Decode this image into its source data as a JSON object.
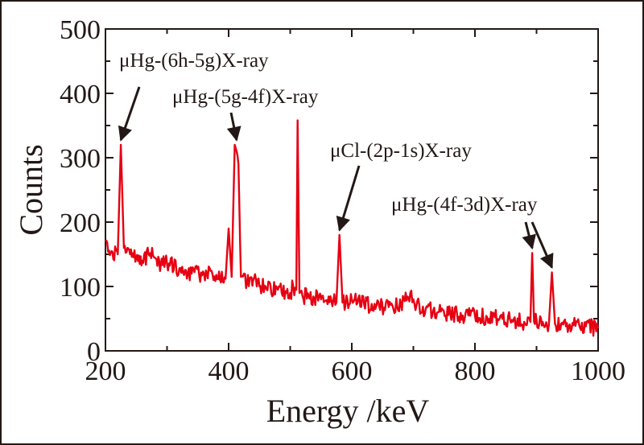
{
  "chart_data": {
    "type": "line",
    "title": "",
    "xlabel": "Energy /keV",
    "ylabel": "Counts",
    "xlim": [
      200,
      1000
    ],
    "ylim": [
      0,
      500
    ],
    "xticks": [
      "200",
      "400",
      "600",
      "800",
      "1000"
    ],
    "yticks": [
      "0",
      "100",
      "200",
      "300",
      "400",
      "500"
    ],
    "grid": false,
    "legend": "none",
    "series": [
      {
        "color": "#e60012",
        "x": [
          200,
          210,
          220,
          225,
          230,
          240,
          250,
          260,
          270,
          280,
          290,
          300,
          320,
          340,
          360,
          380,
          395,
          400,
          405,
          410,
          413,
          416,
          420,
          425,
          430,
          440,
          450,
          460,
          480,
          500,
          505,
          510,
          512,
          515,
          520,
          530,
          550,
          570,
          575,
          580,
          585,
          590,
          600,
          620,
          640,
          660,
          680,
          695,
          700,
          705,
          720,
          740,
          760,
          780,
          800,
          820,
          840,
          860,
          880,
          890,
          893,
          896,
          900,
          910,
          920,
          925,
          930,
          940,
          960,
          980,
          1000
        ],
        "y": [
          170,
          155,
          150,
          320,
          160,
          150,
          145,
          140,
          150,
          145,
          135,
          135,
          128,
          120,
          120,
          118,
          112,
          190,
          115,
          320,
          310,
          290,
          115,
          120,
          105,
          110,
          100,
          100,
          95,
          90,
          100,
          95,
          358,
          90,
          85,
          85,
          80,
          78,
          75,
          180,
          75,
          72,
          80,
          72,
          70,
          68,
          72,
          90,
          80,
          70,
          65,
          60,
          58,
          55,
          55,
          52,
          50,
          48,
          45,
          45,
          152,
          45,
          48,
          45,
          40,
          122,
          42,
          42,
          40,
          38,
          35
        ]
      }
    ],
    "annotations": [
      {
        "text": "μHg-(6h-5g)X-ray",
        "target": [
          225,
          320
        ]
      },
      {
        "text": "μHg-(5g-4f)X-ray",
        "target": [
          413,
          320
        ]
      },
      {
        "text": "μCl-(2p-1s)X-ray",
        "target": [
          580,
          180
        ]
      },
      {
        "text": "μHg-(4f-3d)X-ray",
        "target": [
          893,
          152
        ]
      },
      {
        "text": "",
        "target": [
          925,
          122
        ]
      }
    ]
  }
}
